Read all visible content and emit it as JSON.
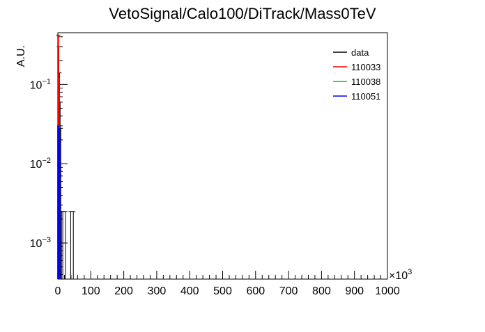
{
  "chart_data": {
    "type": "histogram",
    "title": "VetoSignal/Calo100/DiTrack/Mass0TeV",
    "ylabel": "A.U.",
    "xlabel": "",
    "x_multiplier_label": "×10",
    "x_multiplier_exponent": "3",
    "xlim": [
      0,
      1000
    ],
    "ylim": [
      0.00035,
      0.45
    ],
    "y_scale": "log",
    "x_ticks": [
      "0",
      "100",
      "200",
      "300",
      "400",
      "500",
      "600",
      "700",
      "800",
      "900",
      "1000"
    ],
    "y_ticks": [
      {
        "base": "10",
        "exp": "−1",
        "value": 0.1
      },
      {
        "base": "10",
        "exp": "−2",
        "value": 0.01
      },
      {
        "base": "10",
        "exp": "−3",
        "value": 0.001
      }
    ],
    "legend_position": "top-right",
    "series": [
      {
        "name": "data",
        "color": "#000000",
        "bars": [
          [
            0,
            2,
            0.42
          ],
          [
            2,
            4,
            0.3
          ],
          [
            4,
            6,
            0.14
          ],
          [
            6,
            8,
            0.06
          ],
          [
            8,
            10,
            0.028
          ],
          [
            10,
            12,
            0.0025
          ],
          [
            14,
            16,
            0.0025
          ],
          [
            22,
            24,
            0.0025
          ],
          [
            38,
            40,
            0.0025
          ],
          [
            46,
            48,
            0.0025
          ]
        ]
      },
      {
        "name": "110033",
        "color": "#ff0000",
        "bars": [
          [
            0,
            2,
            0.4
          ],
          [
            2,
            4,
            0.12
          ]
        ]
      },
      {
        "name": "110038",
        "color": "#00cc00",
        "bars": [
          [
            0,
            2,
            0.03
          ],
          [
            2,
            4,
            0.012
          ]
        ]
      },
      {
        "name": "110051",
        "color": "#0000ff",
        "bars": [
          [
            0,
            2,
            0.03
          ],
          [
            2,
            4,
            0.028
          ],
          [
            4,
            6,
            0.02
          ]
        ]
      }
    ]
  }
}
